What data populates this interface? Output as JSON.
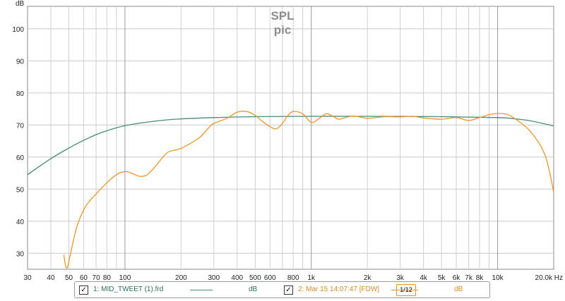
{
  "chart_data": {
    "type": "line",
    "title": "SPL",
    "subtitle": "pic",
    "ylabel": "dB",
    "xunit": "Hz",
    "xscale": "log",
    "xlim": [
      30,
      20000
    ],
    "ylim": [
      25,
      107
    ],
    "grid": true,
    "y_ticks": [
      30,
      40,
      50,
      60,
      70,
      80,
      90,
      100
    ],
    "x_tick_labels": [
      {
        "v": 30,
        "t": "30"
      },
      {
        "v": 40,
        "t": "40"
      },
      {
        "v": 50,
        "t": "50"
      },
      {
        "v": 60,
        "t": "60"
      },
      {
        "v": 70,
        "t": "70"
      },
      {
        "v": 80,
        "t": "80"
      },
      {
        "v": 100,
        "t": "100"
      },
      {
        "v": 200,
        "t": "200"
      },
      {
        "v": 300,
        "t": "300"
      },
      {
        "v": 400,
        "t": "400"
      },
      {
        "v": 500,
        "t": "500"
      },
      {
        "v": 600,
        "t": "600"
      },
      {
        "v": 800,
        "t": "800"
      },
      {
        "v": 1000,
        "t": "1k"
      },
      {
        "v": 2000,
        "t": "2k"
      },
      {
        "v": 3000,
        "t": "3k"
      },
      {
        "v": 4000,
        "t": "4k"
      },
      {
        "v": 5000,
        "t": "5k"
      },
      {
        "v": 6000,
        "t": "6k"
      },
      {
        "v": 7000,
        "t": "7k"
      },
      {
        "v": 8000,
        "t": "8k"
      },
      {
        "v": 10000,
        "t": "10k"
      },
      {
        "v": 20000,
        "t": "20.0k Hz"
      }
    ],
    "series": [
      {
        "name": "1: MID_TWEET (1).frd",
        "color": "#4a8a78",
        "x": [
          30,
          40,
          50,
          60,
          70,
          80,
          100,
          150,
          200,
          300,
          500,
          1000,
          2000,
          5000,
          10000,
          12000,
          15000,
          20000
        ],
        "y": [
          54.5,
          59.5,
          62.8,
          65.2,
          67.0,
          68.2,
          69.8,
          71.3,
          71.9,
          72.3,
          72.6,
          72.7,
          72.7,
          72.6,
          72.3,
          72.0,
          71.3,
          69.7
        ]
      },
      {
        "name": "2: Mar 15 14:07:47 [FDW]",
        "color": "#e8962e",
        "x": [
          47,
          48,
          49,
          50,
          52,
          55,
          60,
          65,
          70,
          80,
          90,
          100,
          110,
          120,
          130,
          140,
          150,
          170,
          200,
          250,
          280,
          300,
          350,
          400,
          450,
          500,
          550,
          600,
          650,
          700,
          750,
          800,
          900,
          1000,
          1100,
          1200,
          1300,
          1400,
          1500,
          1700,
          2000,
          2500,
          3000,
          3500,
          4000,
          5000,
          6000,
          7000,
          8000,
          9000,
          10000,
          11000,
          12000,
          15000,
          18000,
          20000
        ],
        "y": [
          29.5,
          26,
          25.5,
          27.5,
          32,
          38,
          43.5,
          46.5,
          48.5,
          52,
          54.5,
          55.5,
          54.8,
          54,
          54.3,
          56,
          58,
          61.5,
          62.7,
          66,
          69,
          70.5,
          72,
          74,
          74.2,
          73,
          71,
          69.5,
          68.8,
          70.5,
          73,
          74.2,
          73.5,
          70.8,
          72,
          73.5,
          72.8,
          71.8,
          72.2,
          72.8,
          72.1,
          72.6,
          72.5,
          72.7,
          72.2,
          71.8,
          72.3,
          71.4,
          72.3,
          73.2,
          73.6,
          73.4,
          72.5,
          68,
          60.5,
          49
        ]
      }
    ]
  },
  "legend": {
    "item1": {
      "label": "1: MID_TWEET (1).frd",
      "unit": "dB",
      "checked": "✓",
      "line_color": "#4a8a78"
    },
    "item2": {
      "label": "2: Mar 15 14:07:47 [FDW]",
      "unit": "dB",
      "checked": "✓",
      "line_color": "#e8962e",
      "smoothing": "1/12"
    }
  }
}
